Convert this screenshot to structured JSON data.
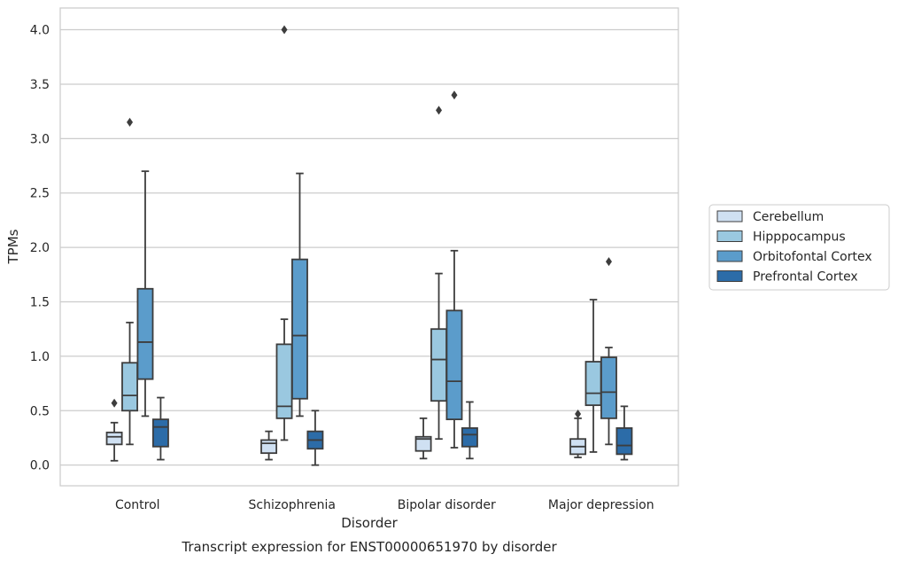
{
  "chart_data": {
    "type": "boxplot",
    "caption": "Transcript expression for ENST00000651970 by disorder",
    "xlabel": "Disorder",
    "ylabel": "TPMs",
    "ylim": [
      -0.19,
      4.2
    ],
    "yticks": [
      "0.0",
      "0.5",
      "1.0",
      "1.5",
      "2.0",
      "2.5",
      "3.0",
      "3.5",
      "4.0"
    ],
    "grid": "horizontal",
    "legend_position": "right",
    "categories": [
      "Control",
      "Schizophrenia",
      "Bipolar disorder",
      "Major depression"
    ],
    "series": [
      {
        "name": "Cerebellum",
        "color": "#cfe0f2",
        "boxes": [
          {
            "whislo": 0.04,
            "q1": 0.19,
            "med": 0.26,
            "q3": 0.3,
            "whishi": 0.39,
            "fliers": [
              0.57
            ]
          },
          {
            "whislo": 0.05,
            "q1": 0.11,
            "med": 0.2,
            "q3": 0.23,
            "whishi": 0.31,
            "fliers": []
          },
          {
            "whislo": 0.06,
            "q1": 0.13,
            "med": 0.24,
            "q3": 0.26,
            "whishi": 0.43,
            "fliers": []
          },
          {
            "whislo": 0.07,
            "q1": 0.1,
            "med": 0.17,
            "q3": 0.24,
            "whishi": 0.43,
            "fliers": [
              0.47
            ]
          }
        ]
      },
      {
        "name": "Hipppocampus",
        "color": "#9ac8e0",
        "boxes": [
          {
            "whislo": 0.19,
            "q1": 0.5,
            "med": 0.64,
            "q3": 0.94,
            "whishi": 1.31,
            "fliers": [
              3.15
            ]
          },
          {
            "whislo": 0.23,
            "q1": 0.43,
            "med": 0.54,
            "q3": 1.11,
            "whishi": 1.34,
            "fliers": [
              4.0
            ]
          },
          {
            "whislo": 0.24,
            "q1": 0.59,
            "med": 0.97,
            "q3": 1.25,
            "whishi": 1.76,
            "fliers": [
              3.26
            ]
          },
          {
            "whislo": 0.12,
            "q1": 0.55,
            "med": 0.66,
            "q3": 0.95,
            "whishi": 1.52,
            "fliers": []
          }
        ]
      },
      {
        "name": "Orbitofontal Cortex",
        "color": "#5b9ccb",
        "boxes": [
          {
            "whislo": 0.45,
            "q1": 0.79,
            "med": 1.13,
            "q3": 1.62,
            "whishi": 2.7,
            "fliers": []
          },
          {
            "whislo": 0.45,
            "q1": 0.61,
            "med": 1.19,
            "q3": 1.89,
            "whishi": 2.68,
            "fliers": []
          },
          {
            "whislo": 0.16,
            "q1": 0.42,
            "med": 0.77,
            "q3": 1.42,
            "whishi": 1.97,
            "fliers": [
              3.4
            ]
          },
          {
            "whislo": 0.19,
            "q1": 0.43,
            "med": 0.67,
            "q3": 0.99,
            "whishi": 1.08,
            "fliers": [
              1.87
            ]
          }
        ]
      },
      {
        "name": "Prefrontal Cortex",
        "color": "#2c6ca8",
        "boxes": [
          {
            "whislo": 0.05,
            "q1": 0.17,
            "med": 0.35,
            "q3": 0.42,
            "whishi": 0.62,
            "fliers": []
          },
          {
            "whislo": 0.0,
            "q1": 0.15,
            "med": 0.23,
            "q3": 0.31,
            "whishi": 0.5,
            "fliers": []
          },
          {
            "whislo": 0.06,
            "q1": 0.17,
            "med": 0.28,
            "q3": 0.34,
            "whishi": 0.58,
            "fliers": []
          },
          {
            "whislo": 0.05,
            "q1": 0.1,
            "med": 0.18,
            "q3": 0.34,
            "whishi": 0.54,
            "fliers": []
          }
        ]
      }
    ]
  }
}
